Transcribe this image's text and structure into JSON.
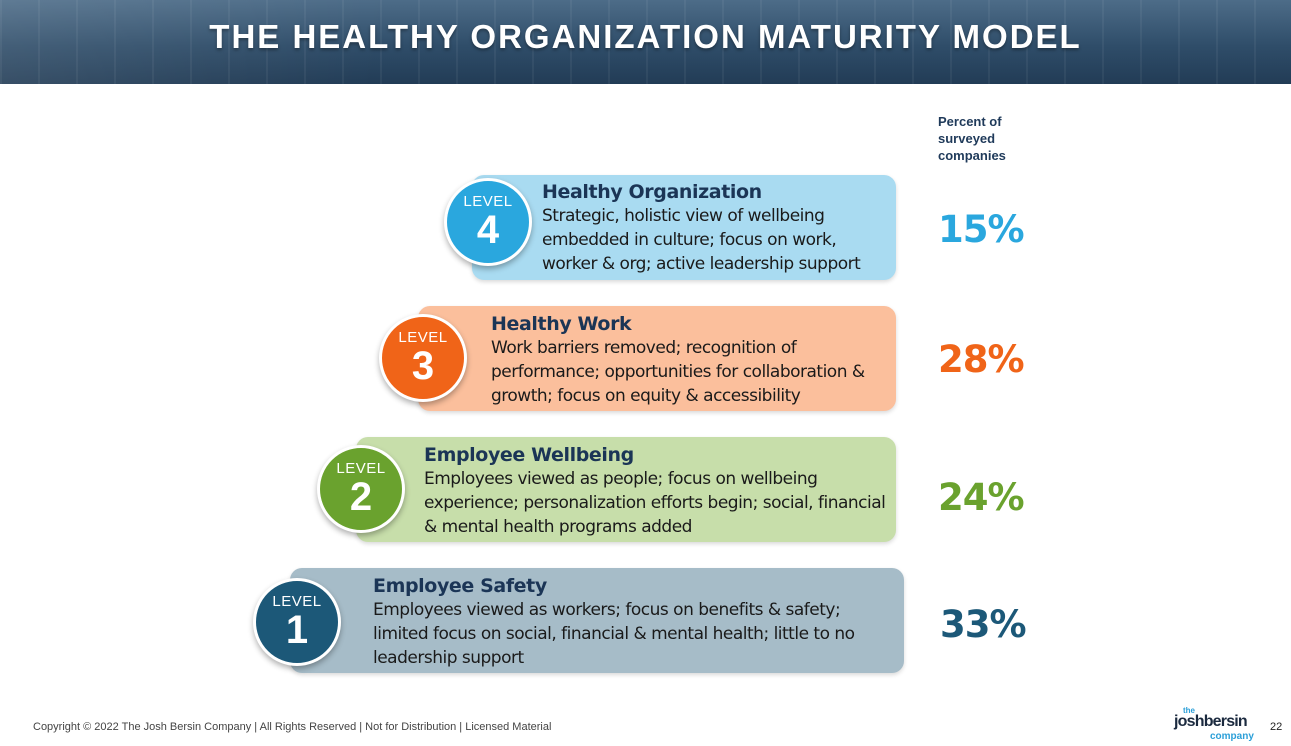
{
  "header": {
    "title": "THE HEALTHY ORGANIZATION MATURITY MODEL"
  },
  "percent_heading": "Percent of\nsurveyed\ncompanies",
  "levels": [
    {
      "badge_label": "LEVEL",
      "number": "4",
      "title": "Healthy Organization",
      "description": "Strategic, holistic view of wellbeing embedded in culture; focus on work, worker & org; active leadership support",
      "percent": "15%",
      "colors": {
        "box": "#a9dbf1",
        "badge": "#2aa7de",
        "percent": "#2aa7de"
      }
    },
    {
      "badge_label": "LEVEL",
      "number": "3",
      "title": "Healthy Work",
      "description": "Work barriers removed; recognition of performance; opportunities for collaboration & growth; focus on equity & accessibility",
      "percent": "28%",
      "colors": {
        "box": "#fbbf9c",
        "badge": "#f06418",
        "percent": "#f06418"
      }
    },
    {
      "badge_label": "LEVEL",
      "number": "2",
      "title": "Employee Wellbeing",
      "description": "Employees viewed as people; focus on wellbeing experience; personalization efforts begin; social, financial & mental health programs added",
      "percent": "24%",
      "colors": {
        "box": "#c7deaa",
        "badge": "#6aa22e",
        "percent": "#6aa22e"
      }
    },
    {
      "badge_label": "LEVEL",
      "number": "1",
      "title": "Employee Safety",
      "description": "Employees viewed as workers; focus on benefits & safety; limited focus on social, financial & mental health; little to no leadership support",
      "percent": "33%",
      "colors": {
        "box": "#a6bcc8",
        "badge": "#1c5878",
        "percent": "#1c5878"
      }
    }
  ],
  "footer": {
    "copyright": "Copyright © 2022 The Josh Bersin Company | All Rights Reserved | Not for Distribution | Licensed Material",
    "page_number": "22",
    "logo": {
      "the": "the",
      "name": "joshbersin",
      "company": "company"
    }
  }
}
